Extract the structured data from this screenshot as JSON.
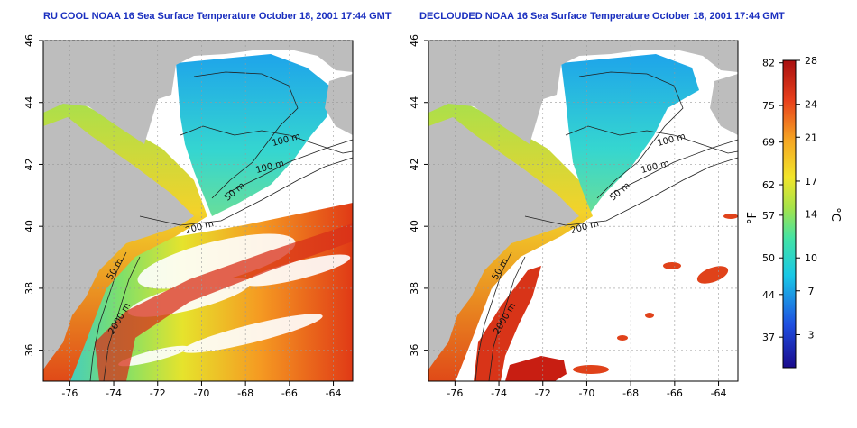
{
  "maps": [
    {
      "title": "RU COOL NOAA 16 Sea Surface Temperature October 18, 2001 17:44 GMT",
      "contour_labels": [
        "100 m",
        "100 m",
        "50 m",
        "200 m",
        "50 m",
        "2000 m"
      ]
    },
    {
      "title": "DECLOUDED NOAA 16 Sea Surface Temperature October 18, 2001 17:44 GMT",
      "contour_labels": [
        "100 m",
        "100 m",
        "50 m",
        "200 m",
        "50 m",
        "2000 m"
      ]
    }
  ],
  "axes": {
    "lon_ticks": [
      "-76",
      "-74",
      "-72",
      "-70",
      "-68",
      "-66",
      "-64"
    ],
    "lat_ticks": [
      "36",
      "38",
      "40",
      "42",
      "44",
      "46"
    ]
  },
  "colorbar": {
    "left_label": "°F",
    "right_label": "°C",
    "f_ticks": [
      "82",
      "75",
      "69",
      "62",
      "57",
      "50",
      "44",
      "37"
    ],
    "c_ticks": [
      "28",
      "24",
      "21",
      "17",
      "14",
      "10",
      "7",
      "3"
    ]
  },
  "colors": {
    "land": "#bdbdbd",
    "cloud": "#ffffff",
    "title": "#1a2fbf",
    "scale": [
      "#1a0a8c",
      "#1f4fe0",
      "#19c8e6",
      "#43e3a5",
      "#a5e34a",
      "#f2e52a",
      "#f5a623",
      "#e8401c",
      "#a80f10"
    ]
  }
}
